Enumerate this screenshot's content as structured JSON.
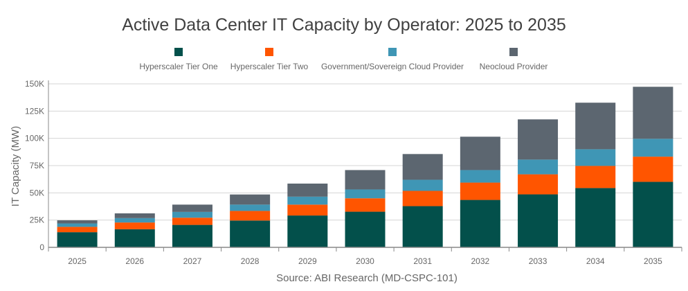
{
  "chart_data": {
    "type": "bar",
    "stacked": true,
    "title": "Active Data Center IT Capacity by Operator: 2025 to 2035",
    "xlabel": "Source: ABI Research (MD-CSPC-101)",
    "ylabel": "IT Capacity (MW)",
    "ylim": [
      0,
      150000
    ],
    "yticks": [
      0,
      25000,
      50000,
      75000,
      100000,
      125000,
      150000
    ],
    "ytick_labels": [
      "0",
      "25K",
      "50K",
      "75K",
      "100K",
      "125K",
      "150K"
    ],
    "grid": true,
    "legend": "top",
    "categories": [
      "2025",
      "2026",
      "2027",
      "2028",
      "2029",
      "2030",
      "2031",
      "2032",
      "2033",
      "2034",
      "2035"
    ],
    "series": [
      {
        "name": "Hyperscaler Tier One",
        "color": "#03504b",
        "values": [
          13900,
          16600,
          20600,
          24600,
          29200,
          32700,
          37800,
          43500,
          48600,
          54400,
          60100
        ]
      },
      {
        "name": "Hyperscaler Tier Two",
        "color": "#ff5500",
        "values": [
          4900,
          6200,
          6600,
          8800,
          10000,
          12300,
          14000,
          15900,
          18400,
          20300,
          23100
        ]
      },
      {
        "name": "Government/Sovereign Cloud Provider",
        "color": "#3f96b5",
        "values": [
          3100,
          4000,
          5300,
          5800,
          7300,
          8100,
          10200,
          11500,
          13500,
          15300,
          16400
        ]
      },
      {
        "name": "Neocloud Provider",
        "color": "#5c6670",
        "values": [
          2900,
          4400,
          6700,
          9300,
          12000,
          17800,
          23600,
          30600,
          36900,
          42700,
          47700
        ]
      }
    ]
  }
}
